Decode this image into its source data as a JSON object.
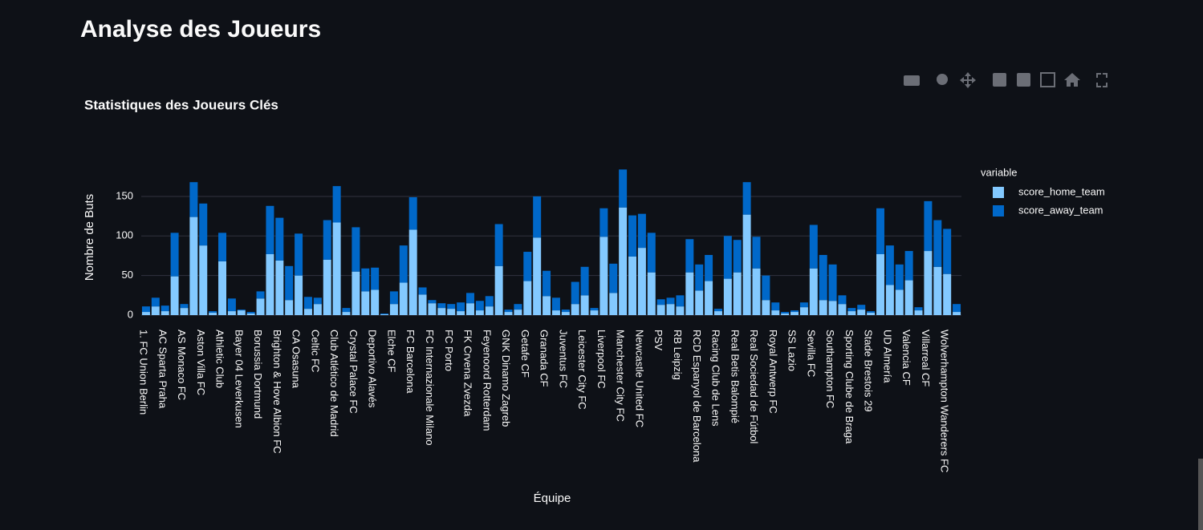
{
  "header": {
    "title": "Analyse des Joueurs"
  },
  "chart_data": {
    "type": "bar",
    "stacked": true,
    "title": "Statistiques des Joueurs Clés",
    "x_label": "Équipe",
    "y_label": "Nombre de Buts",
    "legend_title": "variable",
    "legend": "top-right",
    "grid": true,
    "categories": [
      "1. FC Union Berlin",
      null,
      "AC Sparta Praha",
      null,
      "AS Monaco FC",
      null,
      "Aston Villa FC",
      null,
      "Athletic Club",
      null,
      "Bayer 04 Leverkusen",
      null,
      "Borussia Dortmund",
      null,
      "Brighton & Hove Albion FC",
      null,
      "CA Osasuna",
      null,
      "Celtic FC",
      null,
      "Club Atlético de Madrid",
      null,
      "Crystal Palace FC",
      null,
      "Deportivo Alavés",
      null,
      "Elche CF",
      null,
      "FC Barcelona",
      null,
      "FC Internazionale Milano",
      null,
      "FC Porto",
      null,
      "FK Crvena Zvezda",
      null,
      "Feyenoord Rotterdam",
      null,
      "GNK Dinamo Zagreb",
      null,
      "Getafe CF",
      null,
      "Granada CF",
      null,
      "Juventus FC",
      null,
      "Leicester City FC",
      null,
      "Liverpool FC",
      null,
      "Manchester City FC",
      null,
      "Newcastle United FC",
      null,
      "PSV",
      null,
      "RB Leipzig",
      null,
      "RCD Espanyol de Barcelona",
      null,
      "Racing Club de Lens",
      null,
      "Real Betis Balompié",
      null,
      "Real Sociedad de Fútbol",
      null,
      "Royal Antwerp FC",
      null,
      "SS Lazio",
      null,
      "Sevilla FC",
      null,
      "Southampton FC",
      null,
      "Sporting Clube de Braga",
      null,
      "Stade Brestois 29",
      null,
      "UD Almería",
      null,
      "Valencia CF",
      null,
      "Villarreal CF",
      null,
      "Wolverhampton Wanderers FC",
      null
    ],
    "series": [
      {
        "name": "score_home_team",
        "color": "#83c9ff",
        "values": [
          4,
          11,
          5,
          49,
          9,
          124,
          88,
          3,
          68,
          5,
          6,
          2,
          21,
          77,
          69,
          19,
          50,
          8,
          14,
          70,
          117,
          4,
          55,
          30,
          32,
          1,
          14,
          41,
          108,
          26,
          15,
          9,
          8,
          5,
          15,
          6,
          11,
          62,
          4,
          7,
          43,
          98,
          24,
          6,
          4,
          14,
          25,
          6,
          99,
          28,
          136,
          74,
          85,
          54,
          13,
          14,
          11,
          54,
          31,
          43,
          5,
          46,
          54,
          127,
          59,
          19,
          6,
          2,
          4,
          10,
          59,
          19,
          18,
          14,
          5,
          7,
          3,
          77,
          38,
          32,
          44,
          6,
          81,
          61,
          52,
          4
        ]
      },
      {
        "name": "score_away_team",
        "color": "#0068c9",
        "values": [
          7,
          11,
          7,
          55,
          5,
          44,
          53,
          2,
          36,
          16,
          1,
          2,
          9,
          61,
          54,
          43,
          53,
          15,
          8,
          50,
          46,
          5,
          56,
          29,
          28,
          1,
          16,
          47,
          41,
          9,
          4,
          6,
          6,
          11,
          13,
          12,
          13,
          53,
          3,
          7,
          37,
          52,
          32,
          16,
          3,
          28,
          36,
          3,
          36,
          37,
          48,
          52,
          43,
          50,
          7,
          8,
          14,
          42,
          33,
          33,
          3,
          54,
          41,
          41,
          40,
          31,
          10,
          2,
          2,
          6,
          55,
          57,
          46,
          11,
          4,
          6,
          2,
          58,
          50,
          32,
          37,
          4,
          63,
          59,
          57,
          10
        ]
      }
    ],
    "ylim": [
      0,
      193.5
    ],
    "yticks": [
      0,
      50,
      100,
      150
    ]
  }
}
